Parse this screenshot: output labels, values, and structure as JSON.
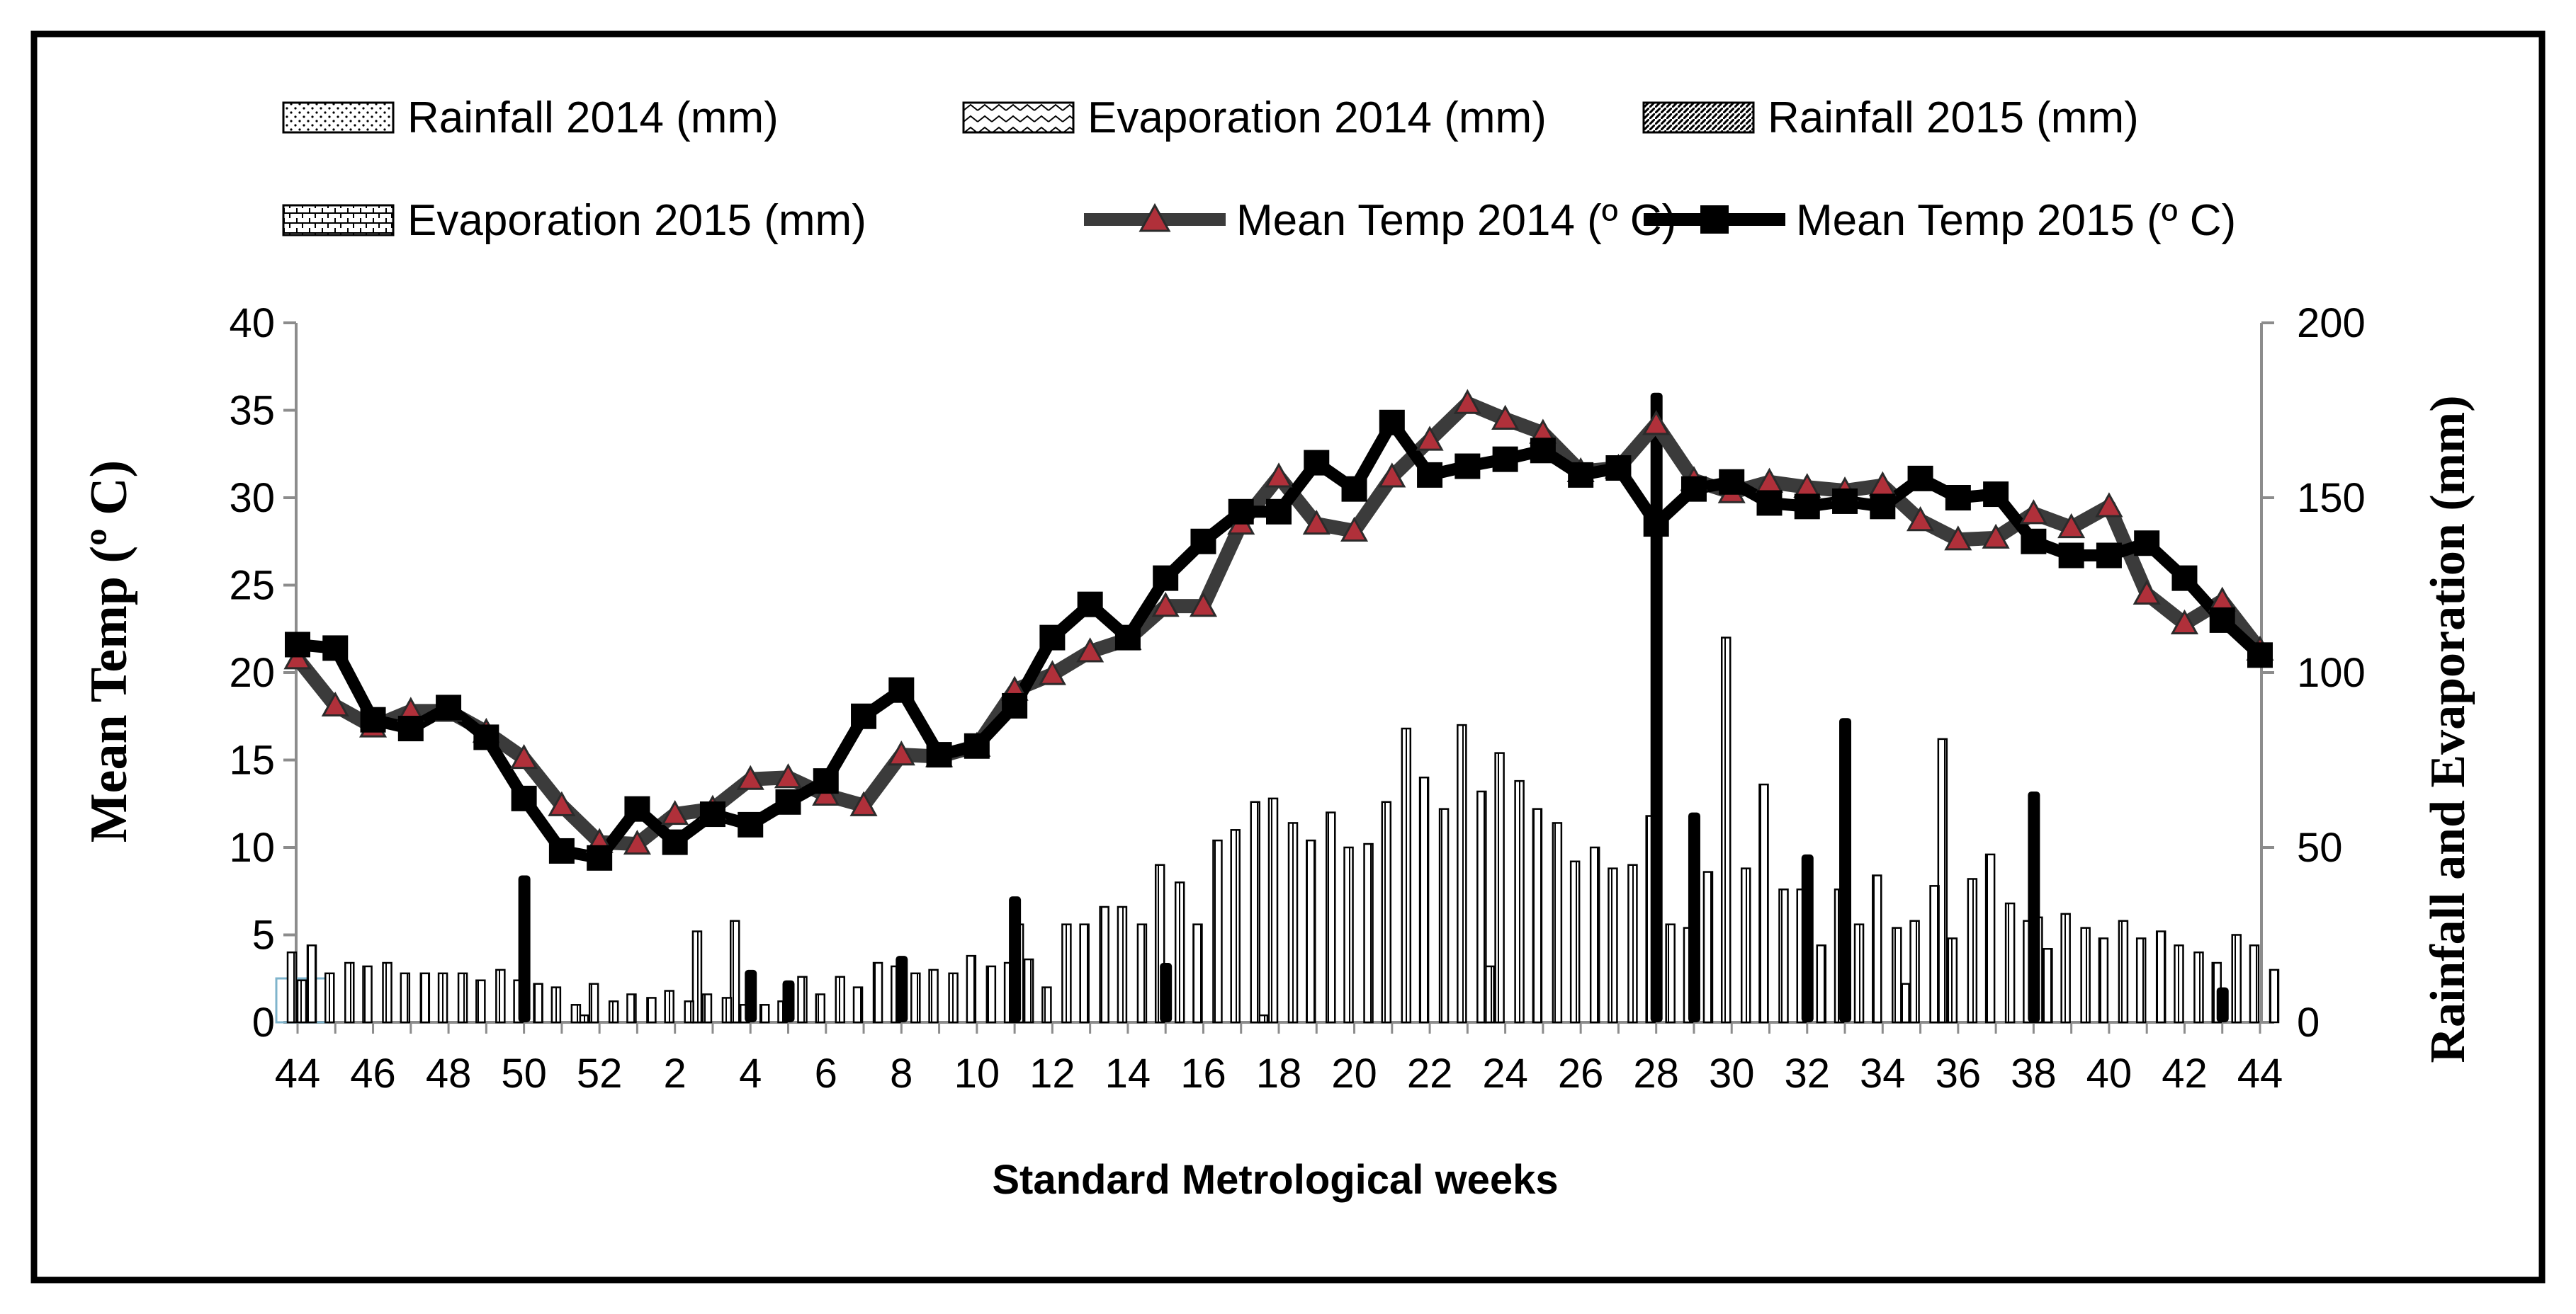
{
  "chart_data": {
    "type": "bar+line",
    "title": "",
    "xlabel": "Standard Metrological weeks",
    "ylabel_left": "Mean Temp (º C)",
    "ylabel_right": "Rainfall and Evaporation (mm)",
    "ylim_left": [
      0,
      40
    ],
    "ylim_right": [
      0,
      200
    ],
    "yticks_left": [
      "0",
      "5",
      "10",
      "15",
      "20",
      "25",
      "30",
      "35",
      "40"
    ],
    "yticks_right": [
      "0",
      "50",
      "100",
      "150",
      "200"
    ],
    "grid": false,
    "legend_position": "top",
    "categories": [
      "44",
      "45",
      "46",
      "47",
      "48",
      "49",
      "50",
      "51",
      "52",
      "1",
      "2",
      "3",
      "4",
      "5",
      "6",
      "7",
      "8",
      "9",
      "10",
      "11",
      "12",
      "13",
      "14",
      "15",
      "16",
      "17",
      "18",
      "19",
      "20",
      "21",
      "22",
      "23",
      "24",
      "25",
      "26",
      "27",
      "28",
      "29",
      "30",
      "31",
      "32",
      "33",
      "34",
      "35",
      "36",
      "37",
      "38",
      "39",
      "40",
      "41",
      "42",
      "43",
      "44"
    ],
    "x_tick_labels": [
      "44",
      "46",
      "48",
      "50",
      "52",
      "2",
      "4",
      "6",
      "8",
      "10",
      "12",
      "14",
      "16",
      "18",
      "20",
      "22",
      "24",
      "26",
      "28",
      "30",
      "32",
      "34",
      "36",
      "38",
      "40",
      "42",
      "44"
    ],
    "legend": [
      {
        "label": "Rainfall 2014  (mm)",
        "pattern": "dots"
      },
      {
        "label": "Evaporation 2014  (mm)",
        "pattern": "zigzag"
      },
      {
        "label": "Rainfall 2015 (mm)",
        "pattern": "diagonal"
      },
      {
        "label": "Evaporation 2015 (mm)",
        "pattern": "brick"
      },
      {
        "label": "Mean Temp 2014 (º C)",
        "pattern": "line-triangle"
      },
      {
        "label": "Mean Temp 2015 (º C)",
        "pattern": "line-square"
      }
    ],
    "series": [
      {
        "name": "Rainfall 2014  (mm)",
        "axis": "right",
        "kind": "bar",
        "values": [
          0,
          0,
          0,
          0,
          0,
          0,
          0,
          0,
          2,
          0,
          0,
          26,
          29,
          0,
          0,
          0,
          0,
          0,
          0,
          0,
          0,
          0,
          0,
          0,
          0,
          0,
          2,
          0,
          0,
          0,
          0,
          0,
          16,
          0,
          0,
          0,
          0,
          0,
          0,
          0,
          0,
          0,
          0,
          11,
          81,
          0,
          0,
          0,
          0,
          0,
          0,
          0,
          0
        ]
      },
      {
        "name": "Evaporation 2014  (mm)",
        "axis": "right",
        "kind": "bar",
        "values": [
          20,
          14,
          16,
          14,
          14,
          12,
          12,
          10,
          11,
          8,
          9,
          8,
          5,
          6,
          8,
          10,
          16,
          15,
          19,
          17,
          10,
          28,
          33,
          45,
          28,
          55,
          64,
          52,
          50,
          63,
          70,
          85,
          77,
          61,
          46,
          44,
          59,
          27,
          110,
          68,
          38,
          38,
          42,
          29,
          24,
          48,
          29,
          31,
          24,
          24,
          22,
          17,
          22
        ]
      },
      {
        "name": "Rainfall 2015 (mm)",
        "axis": "right",
        "kind": "bar",
        "values": [
          12,
          0,
          0,
          0,
          0,
          0,
          0,
          0,
          0,
          0,
          0,
          0,
          0,
          0,
          0,
          0,
          0,
          0,
          0,
          28,
          0,
          0,
          0,
          0,
          0,
          0,
          0,
          0,
          0,
          0,
          0,
          0,
          0,
          0,
          0,
          0,
          0,
          0,
          0,
          0,
          0,
          0,
          0,
          0,
          0,
          0,
          30,
          0,
          0,
          0,
          0,
          0,
          0
        ]
      },
      {
        "name": "Evaporation 2015 (mm)",
        "axis": "right",
        "kind": "bar",
        "values": [
          22,
          17,
          17,
          14,
          14,
          15,
          11,
          5,
          6,
          7,
          6,
          7,
          5,
          13,
          13,
          17,
          14,
          14,
          16,
          18,
          28,
          33,
          28,
          40,
          52,
          63,
          57,
          60,
          51,
          84,
          61,
          66,
          69,
          57,
          50,
          45,
          28,
          43,
          44,
          38,
          22,
          28,
          27,
          39,
          41,
          34,
          21,
          27,
          29,
          26,
          20,
          25,
          15
        ]
      },
      {
        "name": "Rainfall 2015 (mm) (solid)",
        "axis": "right",
        "kind": "bar-solid",
        "values": [
          0,
          0,
          0,
          0,
          0,
          0,
          42,
          0,
          0,
          0,
          0,
          0,
          15,
          12,
          0,
          0,
          19,
          0,
          0,
          36,
          0,
          0,
          0,
          17,
          0,
          0,
          0,
          0,
          0,
          0,
          0,
          0,
          0,
          0,
          0,
          0,
          180,
          60,
          0,
          0,
          48,
          87,
          0,
          0,
          0,
          0,
          66,
          0,
          0,
          0,
          0,
          10,
          0
        ]
      },
      {
        "name": "Mean Temp 2014 (º C)",
        "axis": "left",
        "kind": "line",
        "marker": "triangle",
        "values": [
          20.8,
          18.1,
          16.9,
          17.8,
          17.8,
          16.6,
          15.1,
          12.4,
          10.3,
          10.2,
          11.9,
          12.2,
          13.9,
          14.0,
          13.0,
          12.4,
          15.3,
          15.2,
          15.8,
          19.0,
          19.9,
          21.2,
          21.9,
          23.8,
          23.8,
          28.5,
          31.2,
          28.5,
          28.1,
          31.2,
          33.3,
          35.4,
          34.5,
          33.7,
          31.5,
          31.7,
          34.2,
          31.0,
          30.3,
          30.9,
          30.6,
          30.4,
          30.7,
          28.7,
          27.6,
          27.7,
          29.1,
          28.3,
          29.5,
          24.5,
          22.8,
          24.1,
          21.3
        ]
      },
      {
        "name": "Mean Temp 2015 (º C)",
        "axis": "left",
        "kind": "line",
        "marker": "square",
        "values": [
          21.6,
          21.4,
          17.3,
          16.8,
          18.0,
          16.3,
          12.8,
          9.8,
          9.4,
          12.2,
          10.3,
          11.9,
          11.3,
          12.6,
          13.8,
          17.5,
          19.0,
          15.3,
          15.8,
          18.1,
          22.0,
          23.9,
          22.0,
          25.4,
          27.5,
          29.2,
          29.2,
          32.0,
          30.5,
          34.3,
          31.3,
          31.8,
          32.2,
          32.7,
          31.3,
          31.7,
          28.5,
          30.5,
          30.9,
          29.7,
          29.5,
          29.8,
          29.5,
          31.1,
          30.0,
          30.2,
          27.5,
          26.7,
          26.7,
          27.4,
          25.4,
          23.0,
          21.0
        ]
      }
    ]
  },
  "colors": {
    "line2014": "#3b3b3b",
    "marker2014_fill": "#b0303a",
    "line2015": "#000000",
    "axis": "#8c8c8c",
    "frame": "#000000",
    "highlight_box": "#7fb4cc"
  }
}
